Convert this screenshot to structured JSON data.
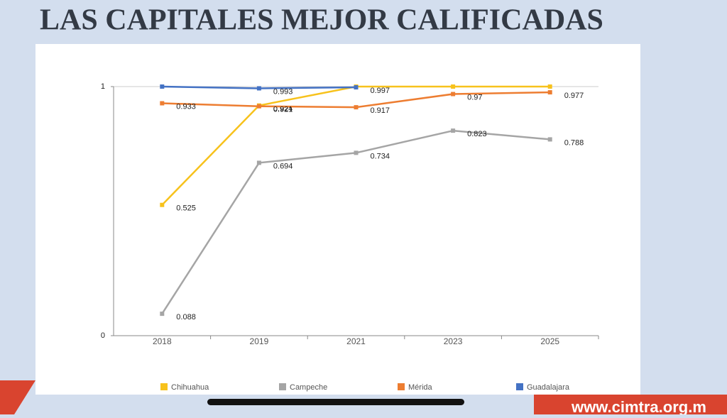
{
  "header": {
    "title": "LAS CAPITALES MEJOR CALIFICADAS"
  },
  "footer": {
    "url": "www.cimtra.org.m"
  },
  "chart_data": {
    "type": "line",
    "categories": [
      "2018",
      "2019",
      "2021",
      "2023",
      "2025"
    ],
    "series": [
      {
        "name": "Chihuahua",
        "color": "#f7c21c",
        "values": [
          0.525,
          0.924,
          1,
          1,
          1
        ],
        "value_labels": [
          "0.525",
          "0.924",
          null,
          null,
          null
        ]
      },
      {
        "name": "Campeche",
        "color": "#a5a5a5",
        "values": [
          0.088,
          0.694,
          0.734,
          0.823,
          0.788
        ]
      },
      {
        "name": "Mérida",
        "color": "#ed7d31",
        "values": [
          0.933,
          0.921,
          0.917,
          0.97,
          0.977
        ]
      },
      {
        "name": "Guadalajara",
        "color": "#4472c4",
        "values": [
          1,
          0.993,
          0.997,
          null,
          null
        ],
        "value_labels": [
          null,
          "0.993",
          "0.997",
          null,
          null
        ]
      }
    ],
    "ylim": [
      0,
      1
    ],
    "yticks": [
      0,
      1
    ],
    "legend": "bottom"
  }
}
